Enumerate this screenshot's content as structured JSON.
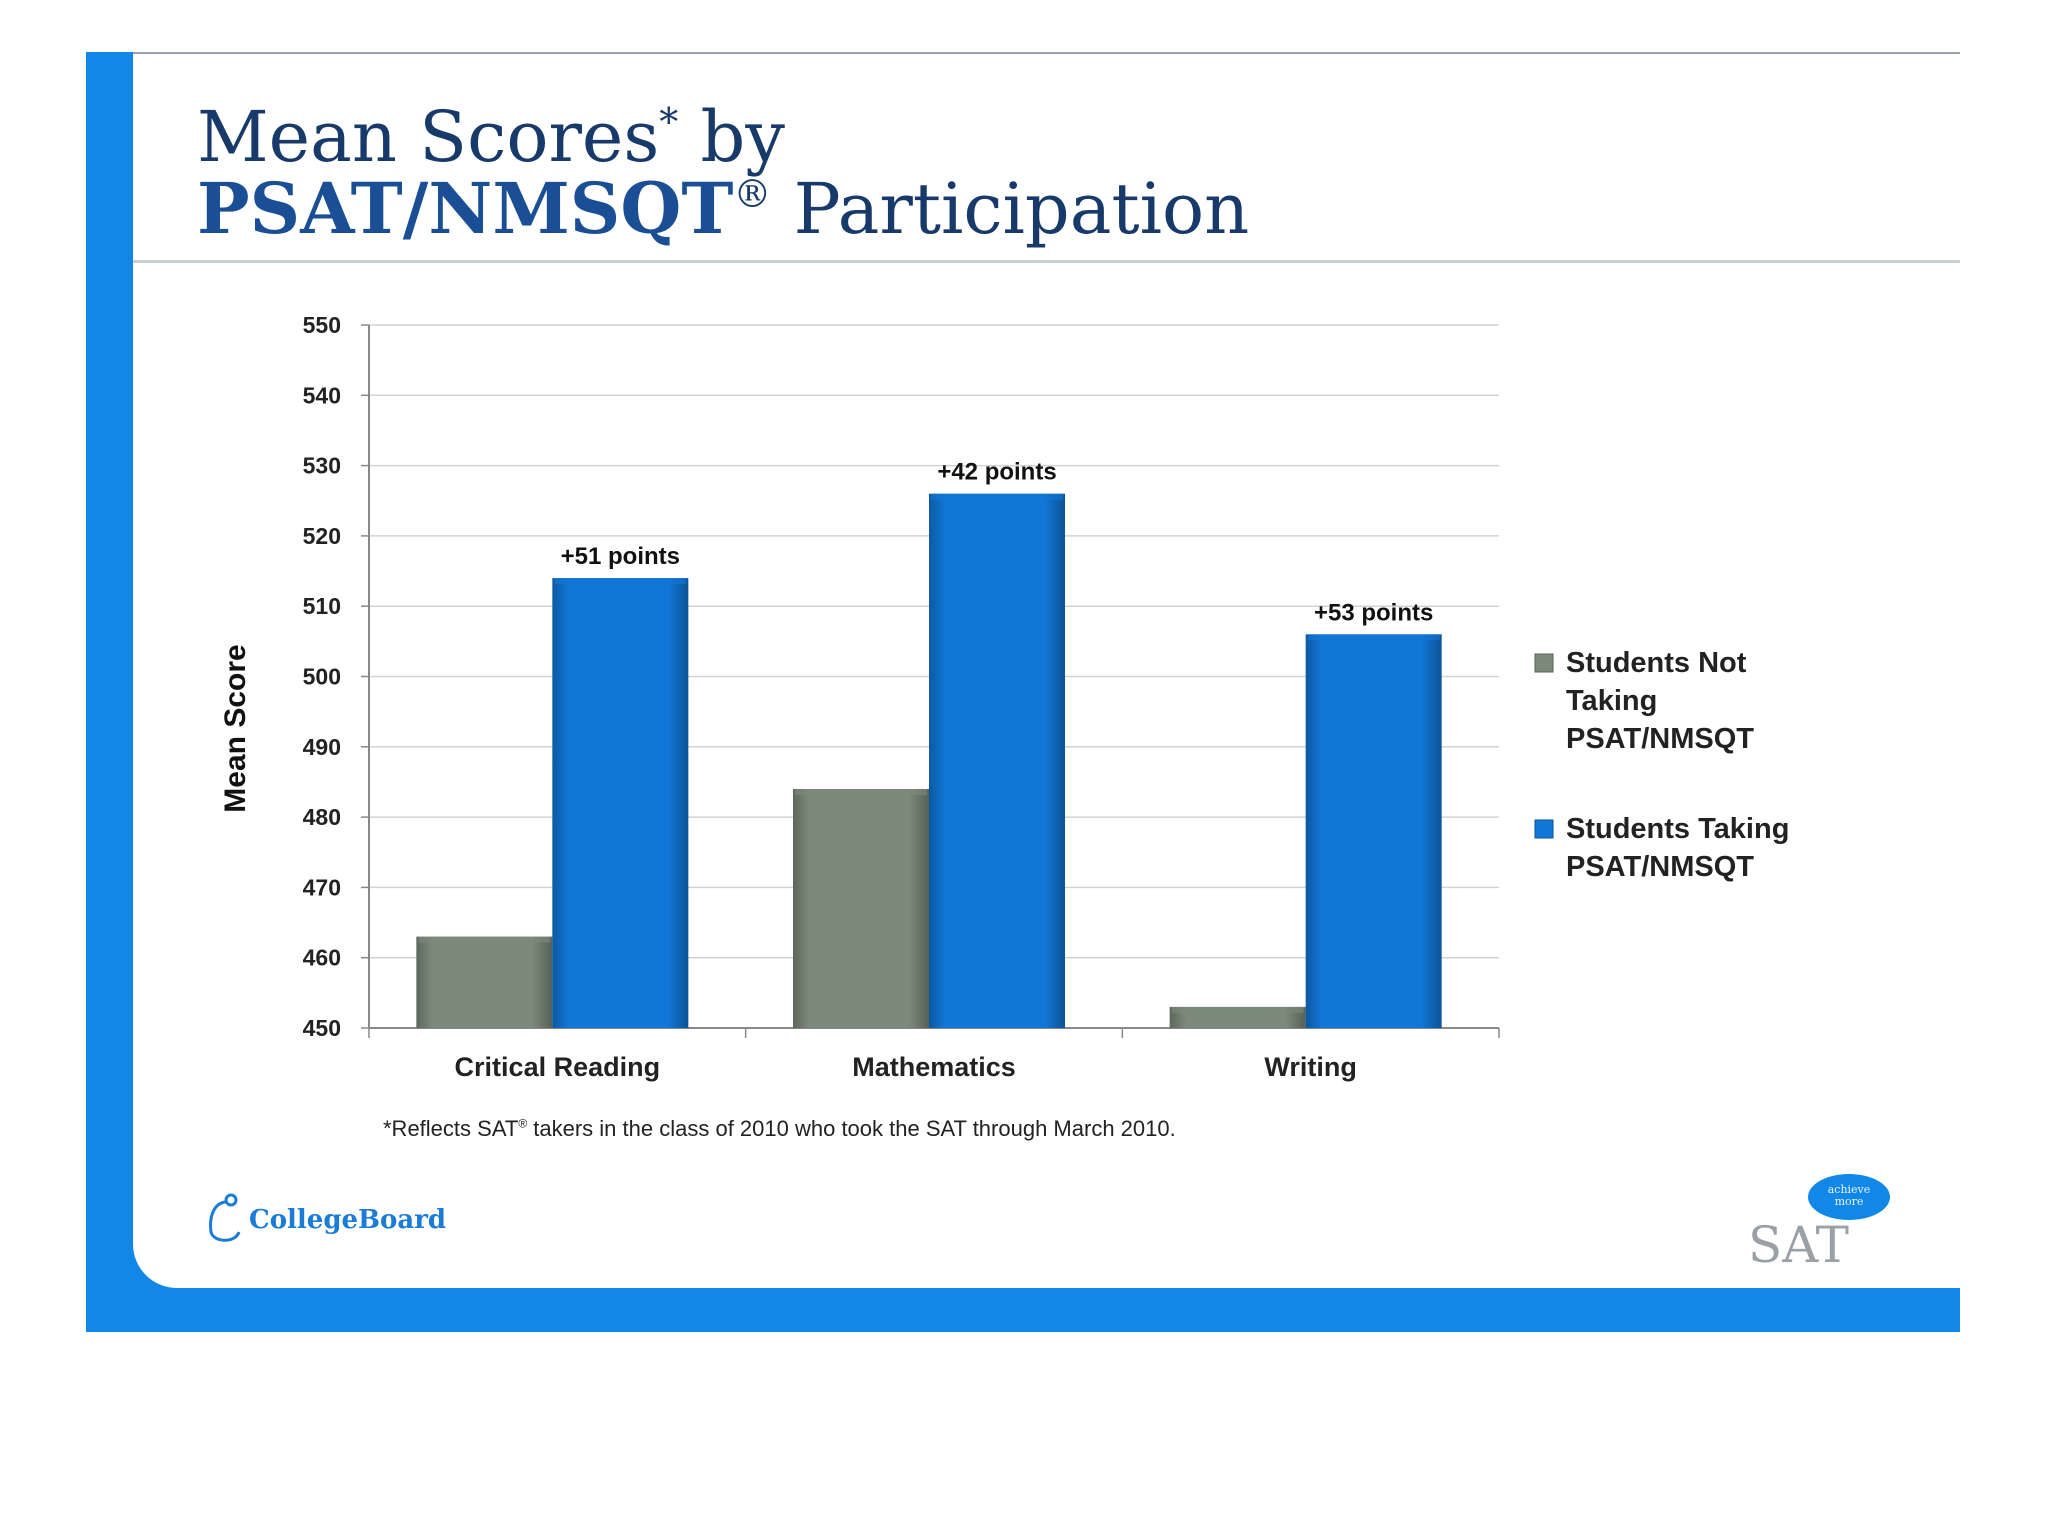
{
  "title": {
    "line1_main": "Mean Scores",
    "line1_mark": "*",
    "line1_tail": " by",
    "line2_strong": "PSAT/NMSQT",
    "line2_mark": "®",
    "line2_tail": " Participation"
  },
  "chart_data": {
    "type": "bar",
    "categories": [
      "Critical Reading",
      "Mathematics",
      "Writing"
    ],
    "series": [
      {
        "name": "Students Not Taking PSAT/NMSQT",
        "legend_lines": [
          "Students Not",
          "Taking",
          "PSAT/NMSQT"
        ],
        "color": "#7c8a7b",
        "values": [
          463,
          484,
          453
        ]
      },
      {
        "name": "Students Taking PSAT/NMSQT",
        "legend_lines": [
          "Students Taking",
          "PSAT/NMSQT"
        ],
        "color": "#1177d6",
        "values": [
          514,
          526,
          506
        ]
      }
    ],
    "annotations": [
      "+51 points",
      "+42 points",
      "+53 points"
    ],
    "ylabel": "Mean Score",
    "ylim": [
      450,
      550
    ],
    "yticks": [
      450,
      460,
      470,
      480,
      490,
      500,
      510,
      520,
      530,
      540,
      550
    ],
    "grid": true,
    "legend_position": "right"
  },
  "footnote": {
    "pre": "*Reflects SAT",
    "mark": "®",
    "post": " takers in the class of 2010 who took the SAT through March 2010."
  },
  "logos": {
    "collegeboard": "CollegeBoard",
    "sat": "SAT",
    "bubble": [
      "achieve",
      "more"
    ]
  },
  "colors": {
    "accent": "#1187e8",
    "title": "#183a6b"
  }
}
